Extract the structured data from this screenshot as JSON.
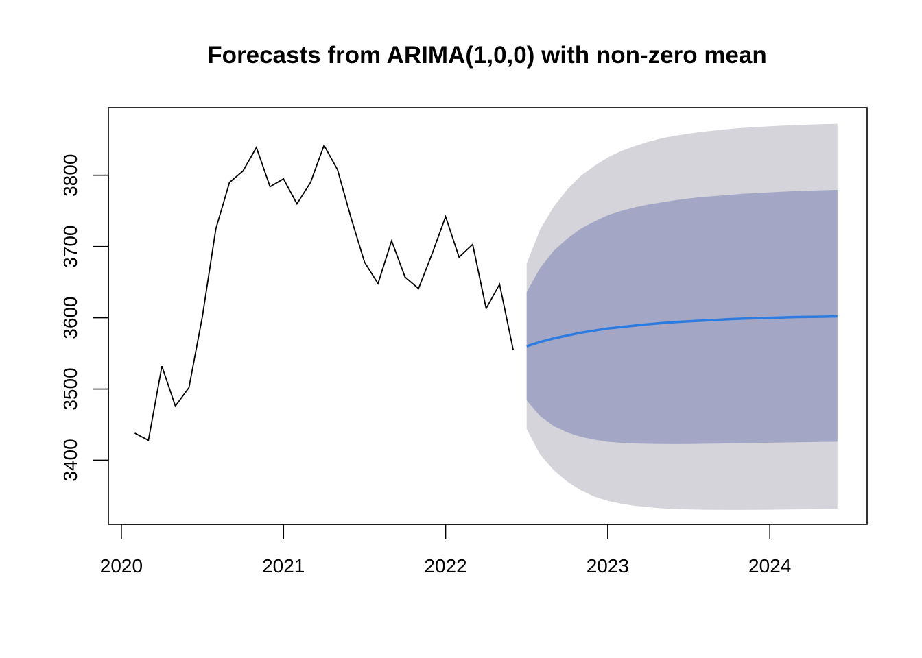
{
  "chart_data": {
    "type": "line",
    "title": "Forecasts from ARIMA(1,0,0) with non-zero mean",
    "xlabel": "",
    "ylabel": "",
    "xlim": [
      2019.92,
      2024.6
    ],
    "ylim": [
      3310,
      3895
    ],
    "x_ticks": [
      2020,
      2021,
      2022,
      2023,
      2024
    ],
    "x_tick_labels": [
      "2020",
      "2021",
      "2022",
      "2023",
      "2024"
    ],
    "y_ticks": [
      3400,
      3500,
      3600,
      3700,
      3800
    ],
    "y_tick_labels": [
      "3400",
      "3500",
      "3600",
      "3700",
      "3800"
    ],
    "grid": false,
    "legend": "none",
    "colors": {
      "observed": "#000000",
      "forecast": "#2b7be0",
      "band_80": "#a3a6c5",
      "band_95": "#d4d4da"
    },
    "observed": {
      "x": [
        2020.083,
        2020.167,
        2020.25,
        2020.333,
        2020.417,
        2020.5,
        2020.583,
        2020.667,
        2020.75,
        2020.833,
        2020.917,
        2021.0,
        2021.083,
        2021.167,
        2021.25,
        2021.333,
        2021.417,
        2021.5,
        2021.583,
        2021.667,
        2021.75,
        2021.833,
        2021.917,
        2022.0,
        2022.083,
        2022.167,
        2022.25,
        2022.333,
        2022.417
      ],
      "y": [
        3438,
        3428,
        3532,
        3476,
        3502,
        3602,
        3725,
        3790,
        3806,
        3839,
        3784,
        3795,
        3760,
        3790,
        3842,
        3808,
        3740,
        3678,
        3648,
        3708,
        3657,
        3641,
        3690,
        3742,
        3685,
        3703,
        3613,
        3647,
        3555
      ]
    },
    "forecast": {
      "x": [
        2022.5,
        2022.583,
        2022.667,
        2022.75,
        2022.833,
        2022.917,
        2023.0,
        2023.083,
        2023.167,
        2023.25,
        2023.333,
        2023.417,
        2023.5,
        2023.583,
        2023.667,
        2023.75,
        2023.833,
        2023.917,
        2024.0,
        2024.083,
        2024.167,
        2024.25,
        2024.333,
        2024.417
      ],
      "mean": [
        3560,
        3566,
        3571,
        3575,
        3579,
        3582,
        3585,
        3587,
        3589,
        3591,
        3592.5,
        3594,
        3595,
        3596,
        3597,
        3598,
        3598.8,
        3599.4,
        3600,
        3600.5,
        3601,
        3601.3,
        3601.6,
        3602
      ],
      "lo80": [
        3484,
        3462,
        3448,
        3439,
        3433,
        3429,
        3426,
        3424.5,
        3423.5,
        3423,
        3422.8,
        3422.7,
        3422.8,
        3423,
        3423.3,
        3423.6,
        3424,
        3424.3,
        3424.6,
        3424.9,
        3425.2,
        3425.5,
        3425.8,
        3426
      ],
      "hi80": [
        3636,
        3670,
        3694,
        3711,
        3725,
        3735,
        3744,
        3750,
        3755,
        3759,
        3762,
        3765,
        3767.5,
        3769.5,
        3771,
        3772.5,
        3774,
        3775,
        3776,
        3777,
        3778,
        3778.5,
        3779,
        3779.5
      ],
      "lo95": [
        3444,
        3408,
        3386,
        3370,
        3358,
        3349,
        3343,
        3339,
        3336,
        3334,
        3332.5,
        3331.5,
        3331,
        3330.6,
        3330.4,
        3330.3,
        3330.3,
        3330.4,
        3330.6,
        3330.8,
        3331,
        3331.3,
        3331.6,
        3332
      ],
      "hi95": [
        3676,
        3724,
        3756,
        3780,
        3799,
        3813,
        3825,
        3834,
        3841,
        3847,
        3852,
        3855.5,
        3858.5,
        3861,
        3863,
        3865,
        3866.5,
        3867.7,
        3868.8,
        3869.7,
        3870.5,
        3871.2,
        3871.8,
        3872.3
      ]
    }
  }
}
